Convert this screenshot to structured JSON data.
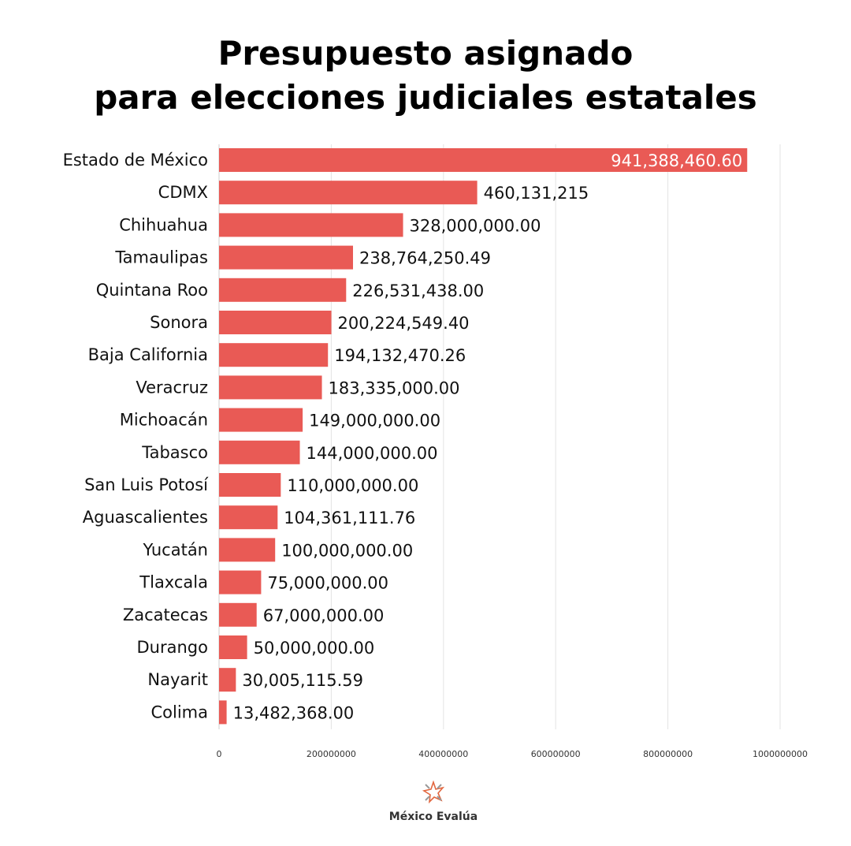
{
  "chart_data": {
    "type": "bar",
    "orientation": "horizontal",
    "title": [
      "Presupuesto asignado",
      "para elecciones judiciales estatales"
    ],
    "categories": [
      "Estado de México",
      "CDMX",
      "Chihuahua",
      "Tamaulipas",
      "Quintana Roo",
      "Sonora",
      "Baja California",
      "Veracruz",
      "Michoacán",
      "Tabasco",
      "San Luis Potosí",
      "Aguascalientes",
      "Yucatán",
      "Tlaxcala",
      "Zacatecas",
      "Durango",
      "Nayarit",
      "Colima"
    ],
    "values": [
      941388460.6,
      460131215,
      328000000.0,
      238764250.49,
      226531438.0,
      200224549.4,
      194132470.26,
      183335000.0,
      149000000.0,
      144000000.0,
      110000000.0,
      104361111.76,
      100000000.0,
      75000000.0,
      67000000.0,
      50000000.0,
      30005115.59,
      13482368.0
    ],
    "data_labels": [
      "941,388,460.60",
      "460,131,215",
      "328,000,000.00",
      "238,764,250.49",
      "226,531,438.00",
      "200,224,549.40",
      "194,132,470.26",
      "183,335,000.00",
      "149,000,000.00",
      "144,000,000.00",
      "110,000,000.00",
      "104,361,111.76",
      "100,000,000.00",
      "75,000,000.00",
      "67,000,000.00",
      "50,000,000.00",
      "30,005,115.59",
      "13,482,368.00"
    ],
    "xticks": [
      0,
      200000000,
      400000000,
      600000000,
      800000000,
      1000000000
    ],
    "xtick_labels": [
      "0",
      "200000000",
      "400000000",
      "600000000",
      "800000000",
      "1000000000"
    ],
    "xlim": [
      0,
      1000000000
    ],
    "grid": true,
    "bar_color": "#E95A55",
    "xlabel": "",
    "ylabel": ""
  },
  "logo": {
    "text": "México Evalúa",
    "accent": "#E2673F",
    "secondary": "#999999"
  }
}
